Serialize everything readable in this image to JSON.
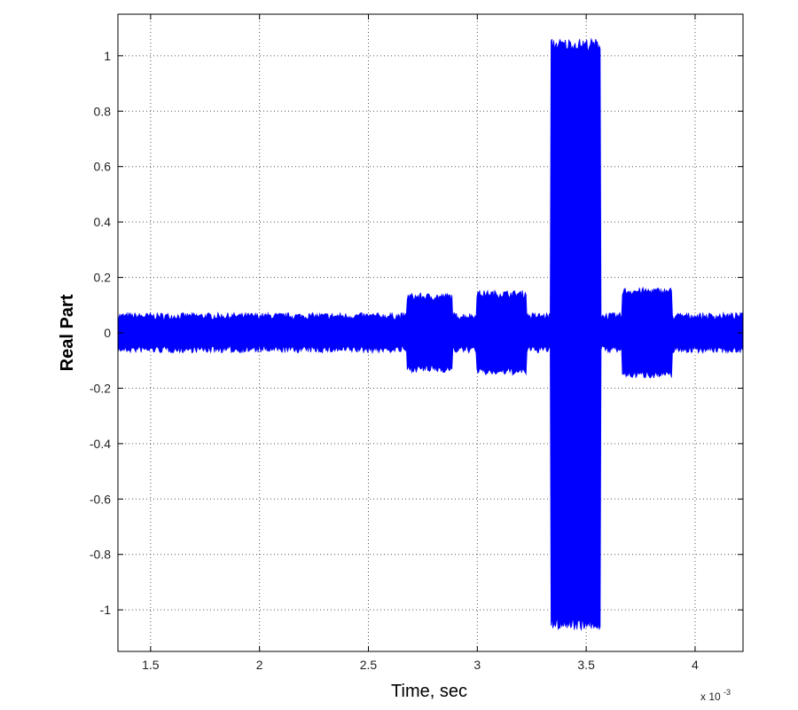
{
  "chart_data": {
    "type": "area",
    "xlabel": "Time, sec",
    "ylabel": "Real Part",
    "x_multiplier_label": "x 10",
    "x_multiplier_exponent": "-3",
    "xlim": [
      1.35,
      4.22
    ],
    "ylim": [
      -1.15,
      1.15
    ],
    "x_ticks": [
      1.5,
      2,
      2.5,
      3,
      3.5,
      4
    ],
    "x_tick_labels": [
      "1.5",
      "2",
      "2.5",
      "3",
      "3.5",
      "4"
    ],
    "y_ticks": [
      1,
      0.8,
      0.6,
      0.4,
      0.2,
      0,
      -0.2,
      -0.4,
      -0.6,
      -0.8,
      -1
    ],
    "y_tick_labels": [
      "1",
      "0.8",
      "0.6",
      "0.4",
      "0.2",
      "0",
      "-0.2",
      "-0.4",
      "-0.6",
      "-0.8",
      "-1"
    ],
    "grid": true,
    "series_color": "#0000ff",
    "envelope": {
      "x": [
        1.35,
        2.68,
        2.68,
        2.88,
        2.88,
        3.0,
        3.0,
        3.22,
        3.22,
        3.34,
        3.34,
        3.56,
        3.56,
        3.67,
        3.67,
        3.89,
        3.89,
        4.22
      ],
      "upper": [
        0.06,
        0.06,
        0.13,
        0.13,
        0.06,
        0.06,
        0.14,
        0.14,
        0.06,
        0.06,
        1.04,
        1.04,
        0.06,
        0.06,
        0.15,
        0.15,
        0.06,
        0.06
      ],
      "lower": [
        -0.06,
        -0.06,
        -0.13,
        -0.13,
        -0.06,
        -0.06,
        -0.14,
        -0.14,
        -0.06,
        -0.06,
        -1.05,
        -1.05,
        -0.06,
        -0.06,
        -0.15,
        -0.15,
        -0.06,
        -0.06
      ]
    }
  }
}
